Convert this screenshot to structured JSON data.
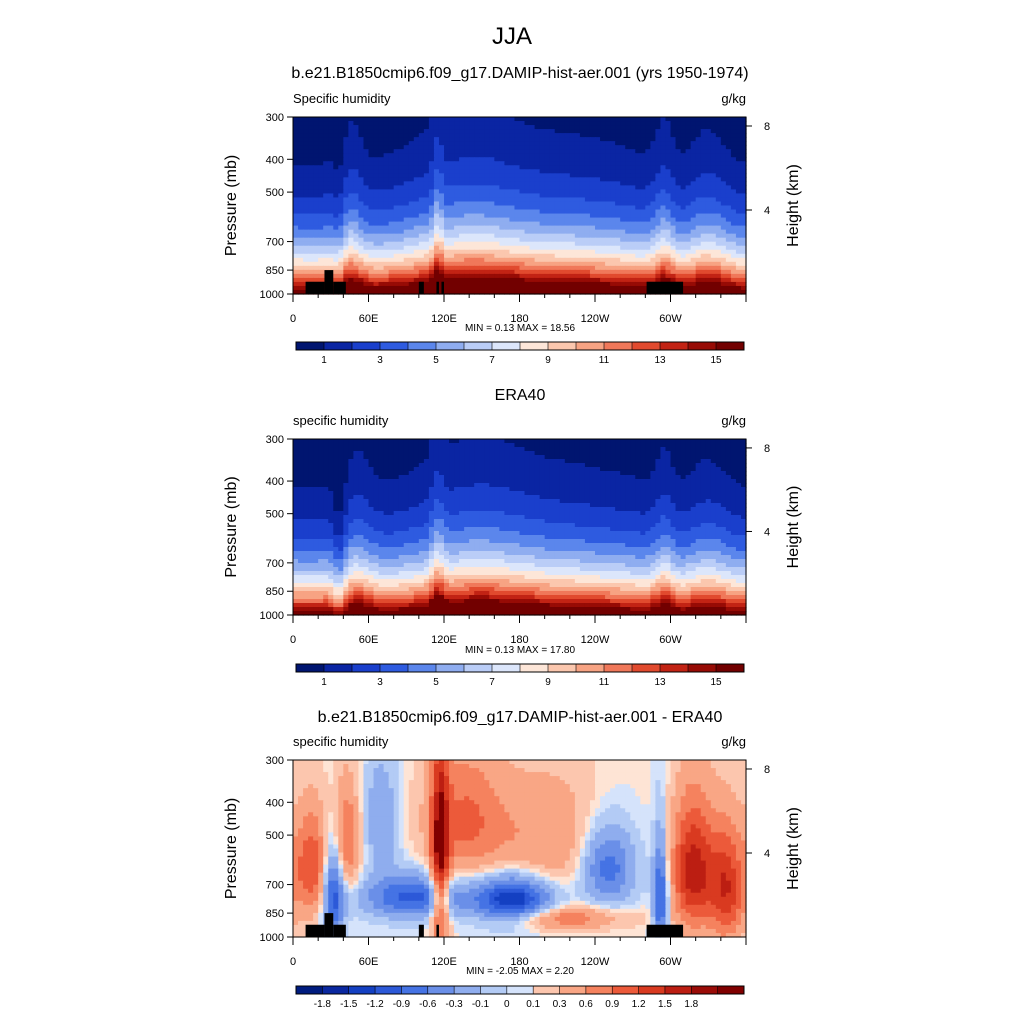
{
  "title": "JJA",
  "colors": {
    "pos": [
      "#FEE4D5",
      "#FCC6AE",
      "#F9A685",
      "#F5825E",
      "#EC5A3A",
      "#D93A20",
      "#BC1E12",
      "#9A0C08",
      "#800000"
    ],
    "neg": [
      "#D5E3FB",
      "#B3CBF5",
      "#8FADEE",
      "#6A8FE8",
      "#4573E4",
      "#2C59D8",
      "#1440C2",
      "#0A28A0",
      "#001C7F"
    ],
    "seq": [
      "#001570",
      "#0A25A3",
      "#1A3FCC",
      "#2E5BE0",
      "#5B86EC",
      "#8FADF0",
      "#BACDF7",
      "#DCE6FB",
      "#FDE6D8",
      "#FBC7AE",
      "#F7A383",
      "#F0785A",
      "#E14A2E",
      "#C22314",
      "#970B05",
      "#720000"
    ],
    "land": "#000000"
  },
  "panels": [
    {
      "title": "b.e21.B1850cmip6.f09_g17.DAMIP-hist-aer.001 (yrs 1950-1974)",
      "left_label": "Specific humidity",
      "right_label": "g/kg",
      "stats": "MIN =   0.13  MAX =  18.56",
      "colorbar_labels": [
        "1",
        "3",
        "5",
        "7",
        "9",
        "11",
        "13",
        "15"
      ]
    },
    {
      "title": "ERA40",
      "left_label": "specific humidity",
      "right_label": "g/kg",
      "stats": "MIN =   0.13  MAX =  17.80",
      "colorbar_labels": [
        "1",
        "3",
        "5",
        "7",
        "9",
        "11",
        "13",
        "15"
      ]
    },
    {
      "title": "b.e21.B1850cmip6.f09_g17.DAMIP-hist-aer.001 - ERA40",
      "left_label": "specific humidity",
      "right_label": "g/kg",
      "stats": "MIN =  -2.05  MAX =   2.20",
      "colorbar_labels": [
        "-1.8",
        "-1.5",
        "-1.2",
        "-0.9",
        "-0.6",
        "-0.3",
        "-0.1",
        "0",
        "0.1",
        "0.3",
        "0.6",
        "0.9",
        "1.2",
        "1.5",
        "1.8"
      ]
    }
  ],
  "chart_data": [
    {
      "type": "heatmap",
      "title": "b.e21.B1850cmip6.f09_g17.DAMIP-hist-aer.001 (yrs 1950-1974)",
      "variable": "Specific humidity",
      "units": "g/kg",
      "xlabel": "",
      "ylabel": "Pressure (mb)",
      "y2label": "Height (km)",
      "x_tick_labels": [
        "0",
        "60E",
        "120E",
        "180",
        "120W",
        "60W"
      ],
      "x_tick_lon": [
        0,
        60,
        120,
        180,
        240,
        300
      ],
      "xlim": [
        0,
        360
      ],
      "y_ticks": [
        300,
        400,
        500,
        700,
        850,
        1000
      ],
      "ylim": [
        1000,
        300
      ],
      "y_scale": "log",
      "y2_ticks": [
        4,
        8
      ],
      "contour_levels": [
        1,
        2,
        3,
        4,
        5,
        6,
        7,
        8,
        9,
        10,
        11,
        12,
        13,
        14,
        15
      ],
      "min": 0.13,
      "max": 18.56,
      "surface_q": 16.8,
      "decay": 2.45,
      "ridges": [
        [
          45,
          3.2,
          8
        ],
        [
          115,
          3.5,
          3
        ],
        [
          140,
          4.0,
          35
        ],
        [
          225,
          2.0,
          40
        ],
        [
          295,
          3.0,
          6
        ],
        [
          330,
          2.5,
          12
        ]
      ],
      "dry_dips": [
        [
          37,
          1.6,
          4
        ]
      ],
      "terrain": [
        {
          "lon": [
            10,
            25
          ],
          "p": 920
        },
        {
          "lon": [
            25,
            32
          ],
          "p": 850
        },
        {
          "lon": [
            32,
            42
          ],
          "p": 920
        },
        {
          "lon": [
            100,
            104
          ],
          "p": 920
        },
        {
          "lon": [
            114,
            116
          ],
          "p": 920
        },
        {
          "lon": [
            118,
            120
          ],
          "p": 920
        },
        {
          "lon": [
            281,
            310
          ],
          "p": 920
        }
      ]
    },
    {
      "type": "heatmap",
      "title": "ERA40",
      "variable": "specific humidity",
      "units": "g/kg",
      "xlabel": "",
      "ylabel": "Pressure (mb)",
      "y2label": "Height (km)",
      "x_tick_labels": [
        "0",
        "60E",
        "120E",
        "180",
        "120W",
        "60W"
      ],
      "x_tick_lon": [
        0,
        60,
        120,
        180,
        240,
        300
      ],
      "xlim": [
        0,
        360
      ],
      "y_ticks": [
        300,
        400,
        500,
        700,
        850,
        1000
      ],
      "ylim": [
        1000,
        300
      ],
      "y_scale": "log",
      "y2_ticks": [
        4,
        8
      ],
      "contour_levels": [
        1,
        2,
        3,
        4,
        5,
        6,
        7,
        8,
        9,
        10,
        11,
        12,
        13,
        14,
        15
      ],
      "min": 0.13,
      "max": 17.8,
      "surface_q": 16.2,
      "decay": 2.5,
      "ridges": [
        [
          50,
          2.6,
          10
        ],
        [
          115,
          3.0,
          4
        ],
        [
          145,
          3.5,
          35
        ],
        [
          225,
          1.5,
          40
        ],
        [
          295,
          2.5,
          6
        ],
        [
          330,
          2.0,
          12
        ]
      ],
      "dry_dips": [
        [
          37,
          2.5,
          4
        ]
      ],
      "terrain": []
    },
    {
      "type": "heatmap",
      "title": "b.e21.B1850cmip6.f09_g17.DAMIP-hist-aer.001 - ERA40",
      "variable": "specific humidity",
      "units": "g/kg",
      "xlabel": "",
      "ylabel": "Pressure (mb)",
      "y2label": "Height (km)",
      "x_tick_labels": [
        "0",
        "60E",
        "120E",
        "180",
        "120W",
        "60W"
      ],
      "x_tick_lon": [
        0,
        60,
        120,
        180,
        240,
        300
      ],
      "xlim": [
        0,
        360
      ],
      "y_ticks": [
        300,
        400,
        500,
        700,
        850,
        1000
      ],
      "ylim": [
        1000,
        300
      ],
      "y_scale": "log",
      "y2_ticks": [
        4,
        8
      ],
      "contour_levels": [
        -1.8,
        -1.5,
        -1.2,
        -0.9,
        -0.6,
        -0.3,
        -0.1,
        0,
        0.1,
        0.3,
        0.6,
        0.9,
        1.2,
        1.5,
        1.8
      ],
      "min": -2.05,
      "max": 2.2,
      "anomalies": [
        [
          15,
          620,
          10,
          160,
          1.2
        ],
        [
          32,
          730,
          6,
          180,
          -1.5
        ],
        [
          42,
          520,
          8,
          140,
          1.0
        ],
        [
          70,
          450,
          10,
          120,
          -0.6
        ],
        [
          95,
          760,
          28,
          80,
          -1.3
        ],
        [
          117,
          620,
          5,
          300,
          1.7
        ],
        [
          135,
          450,
          22,
          140,
          0.9
        ],
        [
          175,
          780,
          22,
          90,
          -1.9
        ],
        [
          200,
          520,
          35,
          160,
          0.6
        ],
        [
          210,
          880,
          35,
          50,
          0.9
        ],
        [
          250,
          620,
          15,
          120,
          -1.2
        ],
        [
          292,
          760,
          4,
          200,
          -1.4
        ],
        [
          318,
          640,
          12,
          200,
          1.7
        ],
        [
          345,
          720,
          10,
          200,
          1.4
        ]
      ],
      "terrain": [
        {
          "lon": [
            10,
            25
          ],
          "p": 920
        },
        {
          "lon": [
            25,
            32
          ],
          "p": 850
        },
        {
          "lon": [
            32,
            42
          ],
          "p": 920
        },
        {
          "lon": [
            100,
            104
          ],
          "p": 920
        },
        {
          "lon": [
            114,
            116
          ],
          "p": 920
        },
        {
          "lon": [
            281,
            310
          ],
          "p": 920
        }
      ]
    }
  ]
}
